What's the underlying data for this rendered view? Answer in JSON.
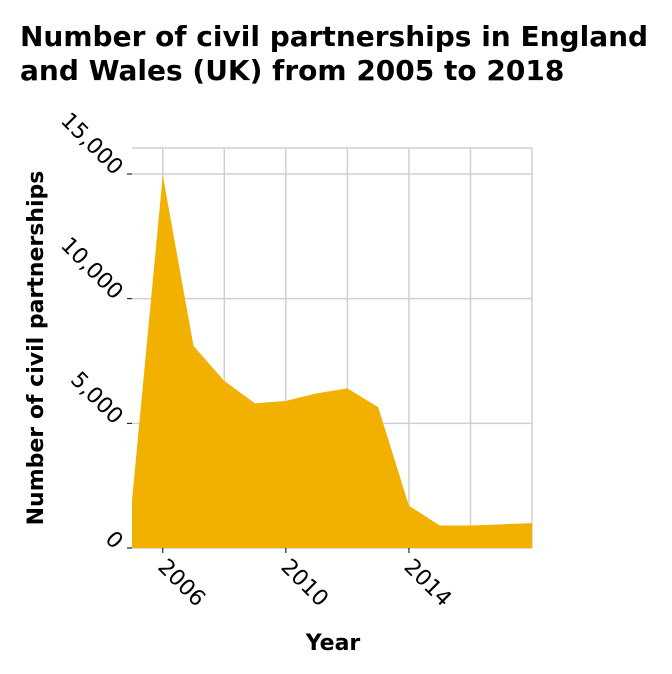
{
  "chart_data": {
    "type": "area",
    "title_lines": [
      "Number of civil partnerships in England",
      "and Wales (UK) from 2005 to 2018"
    ],
    "xlabel": "Year",
    "ylabel": "Number of civil partnerships",
    "x": [
      2005,
      2006,
      2007,
      2008,
      2009,
      2010,
      2011,
      2012,
      2013,
      2014,
      2015,
      2016,
      2017,
      2018
    ],
    "series": [
      {
        "values": [
          1900,
          14950,
          8100,
          6700,
          5800,
          5900,
          6200,
          6400,
          5650,
          1700,
          900,
          900,
          950,
          1000
        ]
      }
    ],
    "xlim": [
      2005,
      2018
    ],
    "ylim": [
      0,
      15000
    ],
    "xticks": [
      2006,
      2010,
      2014
    ],
    "xtick_labels": [
      "2006",
      "2010",
      "2014"
    ],
    "yticks": [
      0,
      5000,
      10000,
      15000
    ],
    "ytick_labels": [
      "0",
      "5,000",
      "10,000",
      "15,000"
    ],
    "xgrid": [
      2006,
      2008,
      2010,
      2012,
      2014,
      2016
    ],
    "grid": true,
    "fill_color": "#f2b100"
  }
}
